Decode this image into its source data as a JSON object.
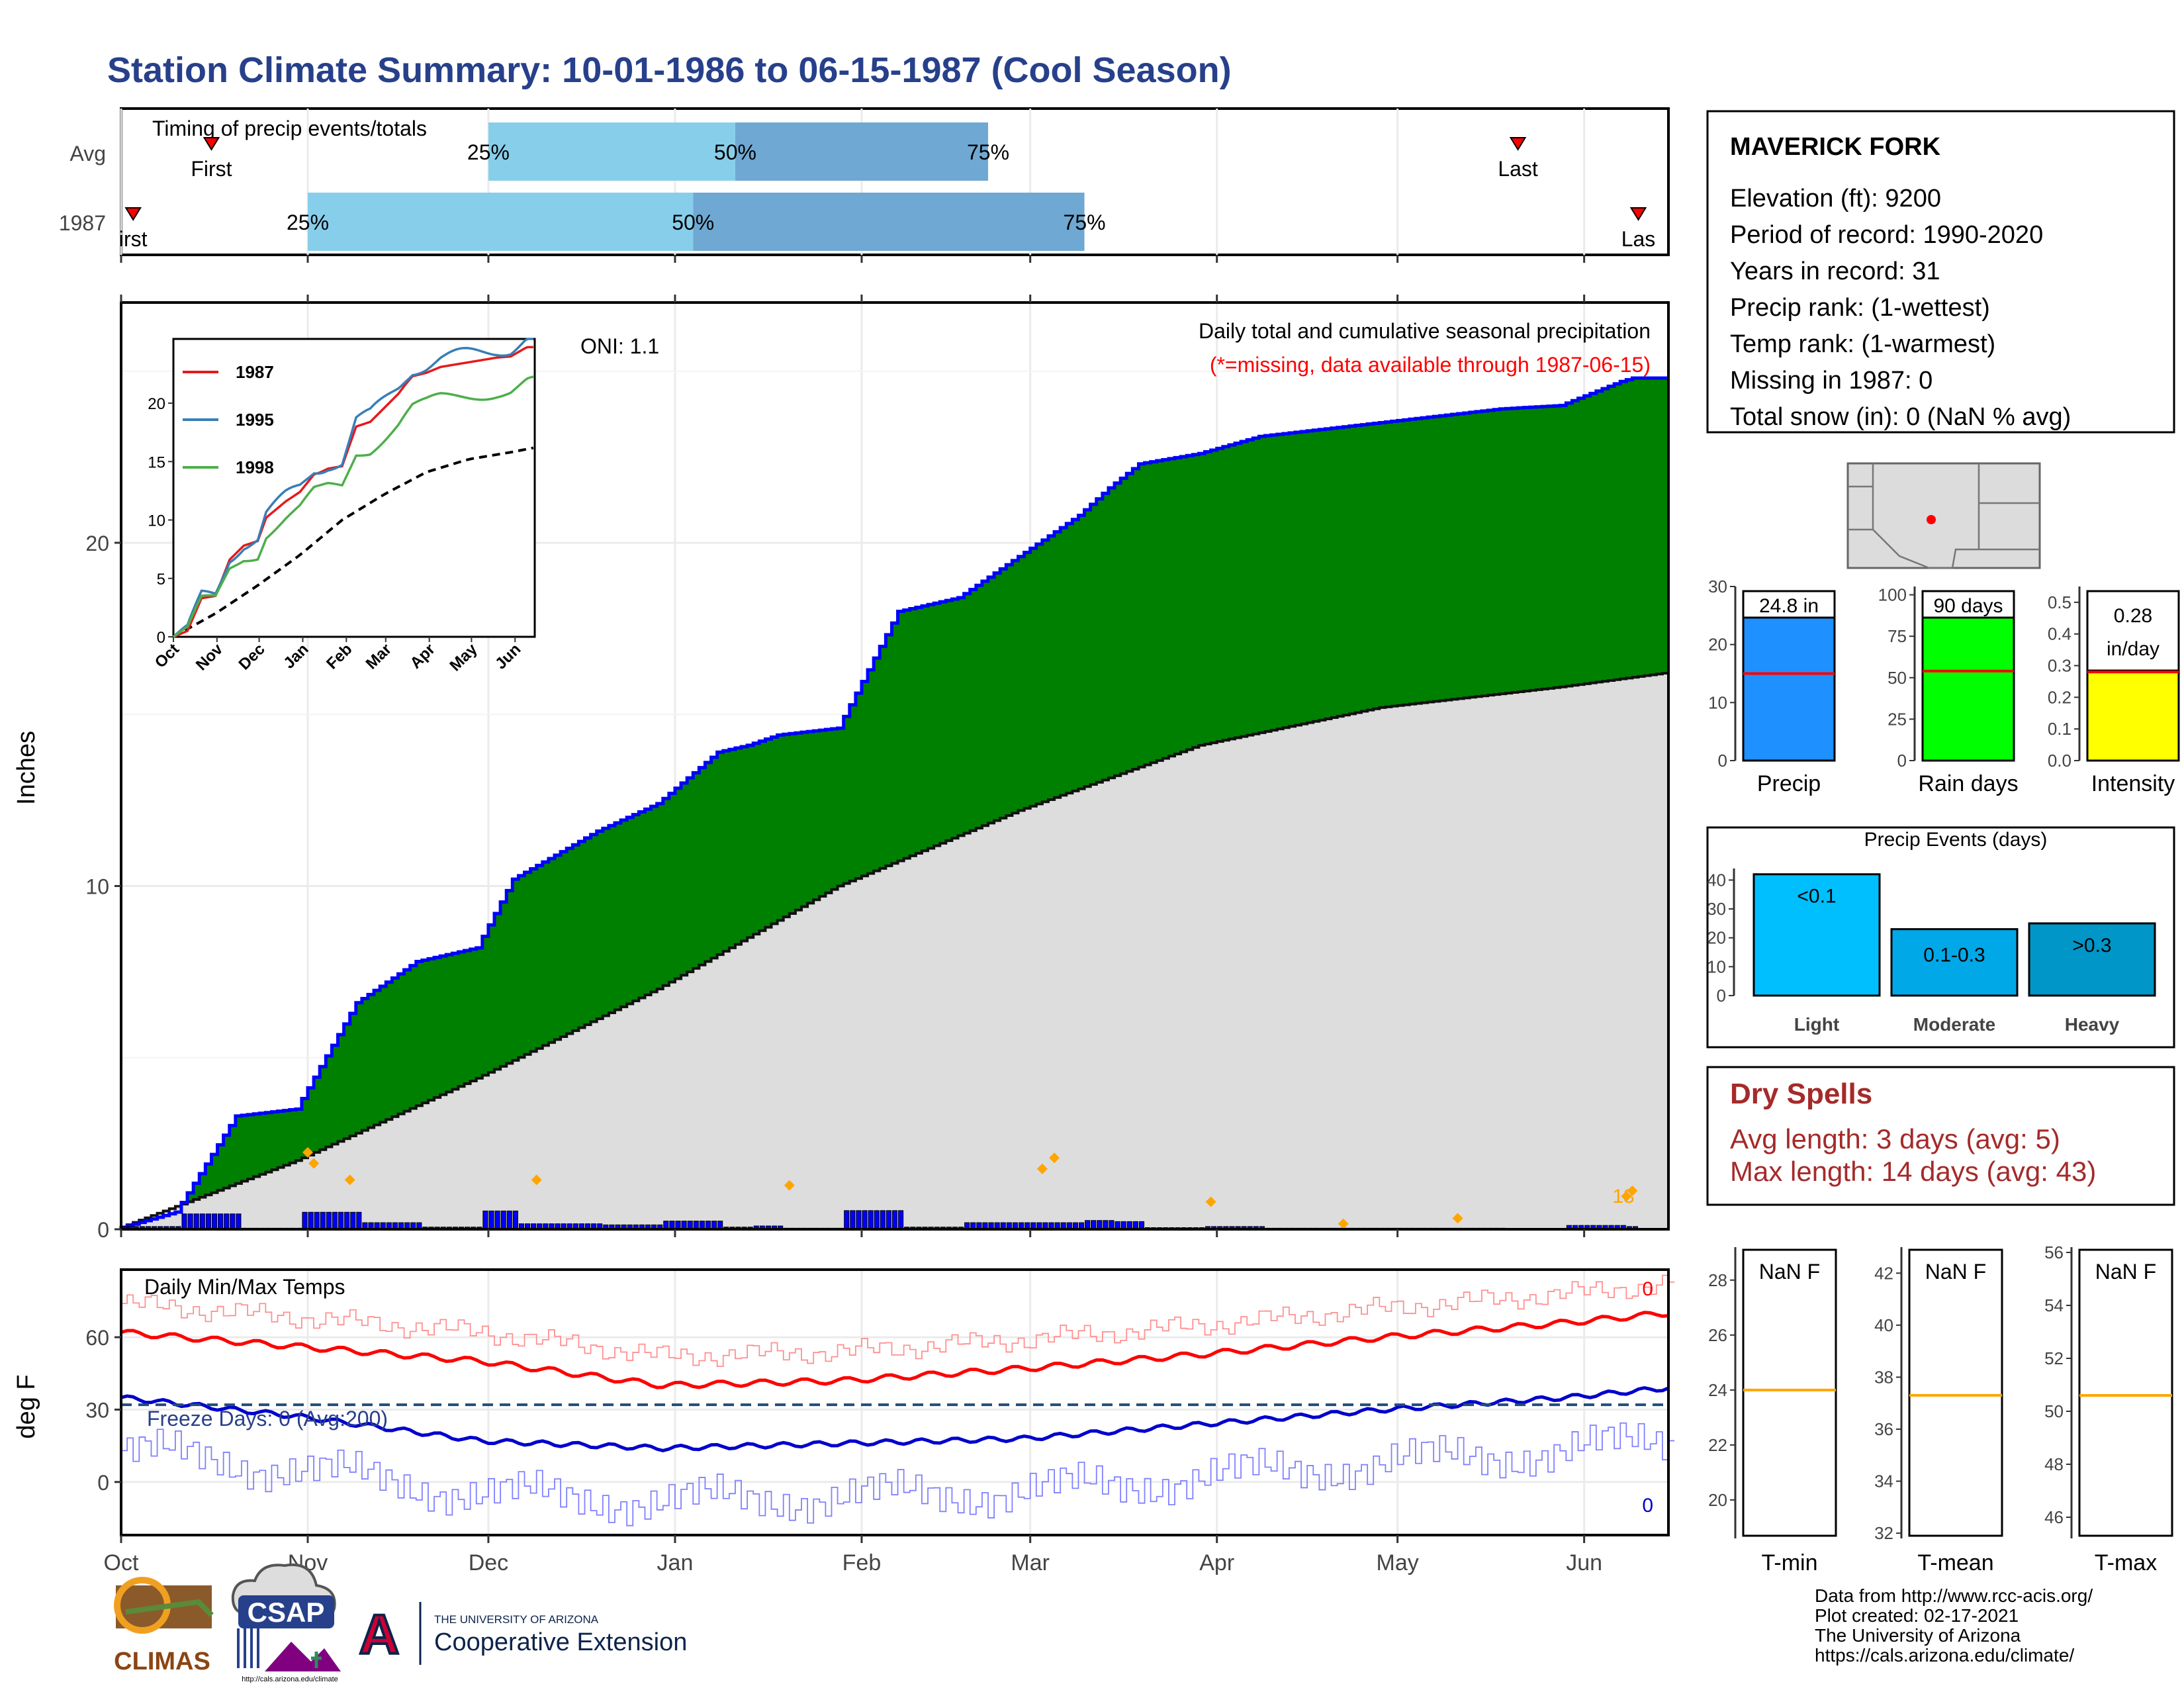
{
  "title": "Station Climate Summary: 10-01-1986 to 06-15-1987 (Cool Season)",
  "colors": {
    "title": "#27408b",
    "precip_fill": "#008000",
    "precip_line": "#0000ff",
    "avg_fill": "#dddddd",
    "daily_bar": "#0000ff",
    "highlight": "#ffa500",
    "dry_spells": "#a52a2a",
    "light_blue": "#87ceeb",
    "steel_blue": "#6fa8d2"
  },
  "timing_panel": {
    "title": "Timing of precip events/totals",
    "rows": [
      {
        "label": "Avg",
        "first_label": "First",
        "last_label": "Last",
        "first_day": 15,
        "last_day": 232,
        "p25_day": 61,
        "p50_day": 102,
        "p75_day": 144,
        "p25_label": "25%",
        "p50_label": "50%",
        "p75_label": "75%"
      },
      {
        "label": "1987",
        "first_label": "irst",
        "last_label": "Las",
        "first_day": 2,
        "last_day": 252,
        "p25_day": 31,
        "p50_day": 95,
        "p75_day": 160,
        "p25_label": "25%",
        "p50_label": "50%",
        "p75_label": "75%"
      }
    ]
  },
  "main_panel": {
    "ylabel": "Inches",
    "annotation_title": "Daily total and cumulative seasonal precipitation",
    "annotation_missing": "(*=missing, data available through 1987-06-15)",
    "oni": "ONI: 1.1",
    "orange_label": "13",
    "ytick_labels": [
      "0",
      "10",
      "20"
    ]
  },
  "inset": {
    "ytick_labels": [
      "0",
      "5",
      "10",
      "15",
      "20"
    ],
    "xtick_labels": [
      "Oct",
      "Nov",
      "Dec",
      "Jan",
      "Feb",
      "Mar",
      "Apr",
      "May",
      "Jun"
    ],
    "legend": [
      {
        "name": "1987",
        "color": "#e41a1c"
      },
      {
        "name": "1995",
        "color": "#377eb8"
      },
      {
        "name": "1998",
        "color": "#4daf4a"
      }
    ]
  },
  "temp_panel": {
    "ylabel": "deg F",
    "title": "Daily Min/Max Temps",
    "freeze_label": "Freeze Days: 0 (Avg:200)",
    "max_count": "0",
    "min_count": "0",
    "ytick_labels": [
      "0",
      "30",
      "60"
    ]
  },
  "x_axis": {
    "months": [
      "Oct",
      "Nov",
      "Dec",
      "Jan",
      "Feb",
      "Mar",
      "Apr",
      "May",
      "Jun"
    ]
  },
  "station": {
    "name": "MAVERICK FORK",
    "elevation": "Elevation (ft): 9200",
    "period": "Period of record: 1990-2020",
    "years": "Years in record: 31",
    "precip_rank": "Precip rank:  (1-wettest)",
    "temp_rank": "Temp rank:  (1-warmest)",
    "missing": "Missing in 1987: 0",
    "snow": "Total snow (in): 0 (NaN % avg)"
  },
  "mini_bars": [
    {
      "label": "Precip",
      "value_text": "24.8 in",
      "color": "#1e90ff",
      "ticks": [
        "0",
        "10",
        "20",
        "30"
      ]
    },
    {
      "label": "Rain days",
      "value_text": "90 days",
      "color": "#00ff00",
      "ticks": [
        "0",
        "25",
        "50",
        "75",
        "100"
      ]
    },
    {
      "label": "Intensity",
      "value_text_1": "0.28",
      "value_text_2": "in/day",
      "color": "#ffff00",
      "ticks": [
        "0.0",
        "0.1",
        "0.2",
        "0.3",
        "0.4",
        "0.5"
      ]
    }
  ],
  "events": {
    "title": "Precip Events (days)",
    "ticks": [
      "0",
      "10",
      "20",
      "30",
      "40"
    ],
    "bars": [
      {
        "label": "Light",
        "inner": "<0.1",
        "value": 42,
        "color": "#00bfff"
      },
      {
        "label": "Moderate",
        "inner": "0.1-0.3",
        "value": 23,
        "color": "#00a8e8"
      },
      {
        "label": "Heavy",
        "inner": ">0.3",
        "value": 25,
        "color": "#0096c7"
      }
    ]
  },
  "dry_spells": {
    "title": "Dry Spells",
    "avg": "Avg length: 3 days (avg: 5)",
    "max": "Max length: 14 days (avg: 43)"
  },
  "temp_boxes": [
    {
      "label": "T-min",
      "value": "NaN F",
      "ticks": [
        "20",
        "22",
        "24",
        "26",
        "28"
      ]
    },
    {
      "label": "T-mean",
      "value": "NaN F",
      "ticks": [
        "32",
        "34",
        "36",
        "38",
        "40",
        "42"
      ]
    },
    {
      "label": "T-max",
      "value": "NaN F",
      "ticks": [
        "46",
        "48",
        "50",
        "52",
        "54",
        "56"
      ]
    }
  ],
  "credits": {
    "line1": "Data from http://www.rcc-acis.org/",
    "line2": "Plot created: 02-17-2021",
    "line3": "The University of Arizona",
    "line4": "https://cals.arizona.edu/climate/"
  },
  "logos": {
    "climas": "CLIMAS",
    "csap": "CSAP",
    "csap_url": "http://cals.arizona.edu/climate",
    "ua_letter": "A",
    "ua_small": "THE UNIVERSITY OF ARIZONA",
    "ua_big": "Cooperative Extension"
  },
  "chart_data": {
    "type": "area",
    "title": "Station Climate Summary: 10-01-1986 to 06-15-1987 (Cool Season)",
    "ylabel": "Inches",
    "x_range": [
      "1986-10-01",
      "1987-06-15"
    ],
    "ylim": [
      0,
      26
    ],
    "series": [
      {
        "name": "cumulative",
        "x_day": [
          0,
          10,
          20,
          30,
          40,
          50,
          60,
          66,
          70,
          80,
          90,
          100,
          105,
          110,
          120,
          130,
          140,
          150,
          160,
          165,
          170,
          180,
          190,
          200,
          210,
          220,
          230,
          240,
          250,
          252,
          257
        ],
        "values": [
          0,
          0.5,
          3.3,
          3.5,
          6.6,
          7.8,
          8.2,
          10.2,
          10.6,
          11.6,
          12.4,
          13.9,
          14.1,
          14.4,
          14.6,
          18.0,
          18.4,
          19.6,
          20.8,
          21.6,
          22.3,
          22.6,
          23.1,
          23.3,
          23.5,
          23.7,
          23.9,
          24.0,
          24.7,
          24.8,
          24.8
        ]
      },
      {
        "name": "average",
        "x_day": [
          0,
          30,
          60,
          90,
          120,
          150,
          180,
          210,
          240,
          257
        ],
        "values": [
          0,
          2.0,
          4.4,
          7.0,
          10.0,
          12.2,
          14.1,
          15.2,
          15.8,
          16.2
        ]
      }
    ],
    "daily_peaks": [
      {
        "x_day": 31,
        "value": 1.4
      },
      {
        "x_day": 32,
        "value": 1.2
      },
      {
        "x_day": 38,
        "value": 0.9
      },
      {
        "x_day": 69,
        "value": 0.9
      },
      {
        "x_day": 111,
        "value": 0.8
      },
      {
        "x_day": 153,
        "value": 1.1
      },
      {
        "x_day": 155,
        "value": 1.3
      },
      {
        "x_day": 181,
        "value": 0.5
      },
      {
        "x_day": 203,
        "value": 0.1
      },
      {
        "x_day": 222,
        "value": 0.2
      },
      {
        "x_day": 250,
        "value": 0.6
      },
      {
        "x_day": 251,
        "value": 0.7
      }
    ],
    "temps": {
      "avg_max": [
        {
          "x": 0,
          "y": 62
        },
        {
          "x": 60,
          "y": 50
        },
        {
          "x": 90,
          "y": 40
        },
        {
          "x": 120,
          "y": 42
        },
        {
          "x": 150,
          "y": 47
        },
        {
          "x": 180,
          "y": 53
        },
        {
          "x": 210,
          "y": 60
        },
        {
          "x": 240,
          "y": 66
        },
        {
          "x": 257,
          "y": 70
        }
      ],
      "avg_min": [
        {
          "x": 0,
          "y": 35
        },
        {
          "x": 30,
          "y": 27
        },
        {
          "x": 60,
          "y": 17
        },
        {
          "x": 90,
          "y": 14
        },
        {
          "x": 120,
          "y": 16
        },
        {
          "x": 150,
          "y": 18
        },
        {
          "x": 180,
          "y": 24
        },
        {
          "x": 210,
          "y": 30
        },
        {
          "x": 240,
          "y": 35
        },
        {
          "x": 257,
          "y": 39
        }
      ],
      "freeze_line": 32
    }
  }
}
